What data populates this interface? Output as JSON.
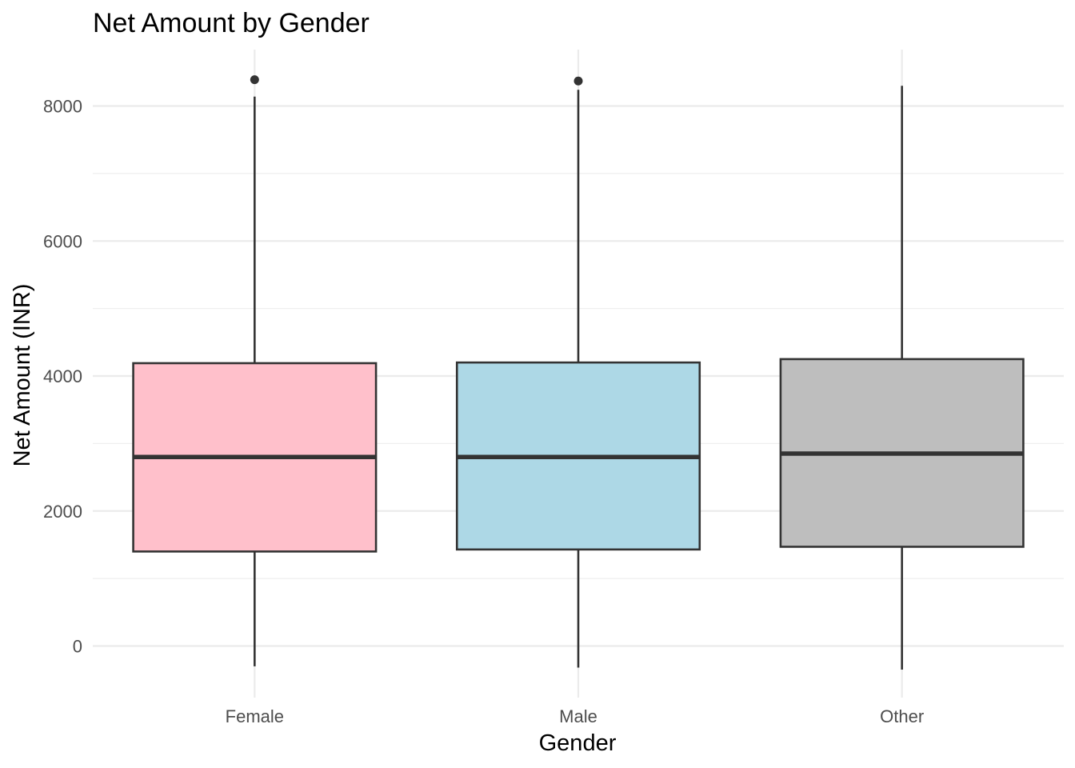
{
  "chart_data": {
    "type": "boxplot",
    "title": "Net Amount by Gender",
    "xlabel": "Gender",
    "ylabel": "Net Amount (INR)",
    "ylim": [
      -750,
      8800
    ],
    "yticks": [
      0,
      2000,
      4000,
      6000,
      8000
    ],
    "grid": true,
    "legend": "none",
    "categories": [
      "Female",
      "Male",
      "Other"
    ],
    "boxes": [
      {
        "category": "Female",
        "min": -300,
        "q1": 1400,
        "median": 2800,
        "q3": 4190,
        "max": 8140,
        "outliers": [
          8390
        ],
        "color": "#FFC0CB"
      },
      {
        "category": "Male",
        "min": -320,
        "q1": 1430,
        "median": 2800,
        "q3": 4200,
        "max": 8240,
        "outliers": [
          8370
        ],
        "color": "#ADD8E6"
      },
      {
        "category": "Other",
        "min": -350,
        "q1": 1470,
        "median": 2850,
        "q3": 4250,
        "max": 8300,
        "outliers": [],
        "color": "#BEBEBE"
      }
    ]
  }
}
